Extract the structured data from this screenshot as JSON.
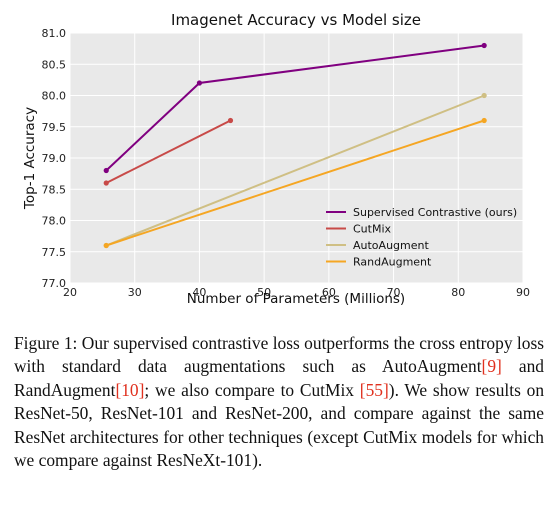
{
  "chart_data": {
    "type": "line",
    "title": "Imagenet Accuracy vs Model size",
    "xlabel": "Number of Parameters (Millions)",
    "ylabel": "Top-1 Accuracy",
    "xlim": [
      20,
      90
    ],
    "ylim": [
      77.0,
      81.0
    ],
    "xticks": [
      "20",
      "30",
      "40",
      "50",
      "60",
      "70",
      "80",
      "90"
    ],
    "yticks": [
      "77.0",
      "77.5",
      "78.0",
      "78.5",
      "79.0",
      "79.5",
      "80.0",
      "80.5",
      "81.0"
    ],
    "grid": true,
    "legend_position": "lower-right",
    "series": [
      {
        "name": "Supervised Contrastive (ours)",
        "color": "#800080",
        "x": [
          25.6,
          40,
          84
        ],
        "y": [
          78.8,
          80.2,
          80.8
        ]
      },
      {
        "name": "CutMix",
        "color": "#c84a48",
        "x": [
          25.6,
          44.8
        ],
        "y": [
          78.6,
          79.6
        ]
      },
      {
        "name": "AutoAugment",
        "color": "#cfbf84",
        "x": [
          25.6,
          84
        ],
        "y": [
          77.6,
          80.0
        ]
      },
      {
        "name": "RandAugment",
        "color": "#f5a623",
        "x": [
          25.6,
          84
        ],
        "y": [
          77.6,
          79.6
        ]
      }
    ]
  },
  "caption": {
    "label": "Figure 1:",
    "t1": "Our supervised contrastive loss outperforms the cross entropy loss with standard data augmentations such as AutoAugment",
    "ref1": "[9]",
    "t2": " and RandAugment",
    "ref2": "[10]",
    "t3": "; we also compare to CutMix ",
    "ref3": "[55]",
    "t4": "). We show results on ResNet-50, ResNet-101 and ResNet-200, and compare against the same ResNet architectures for other techniques (except CutMix models for which we compare against ResNeXt-101)."
  }
}
